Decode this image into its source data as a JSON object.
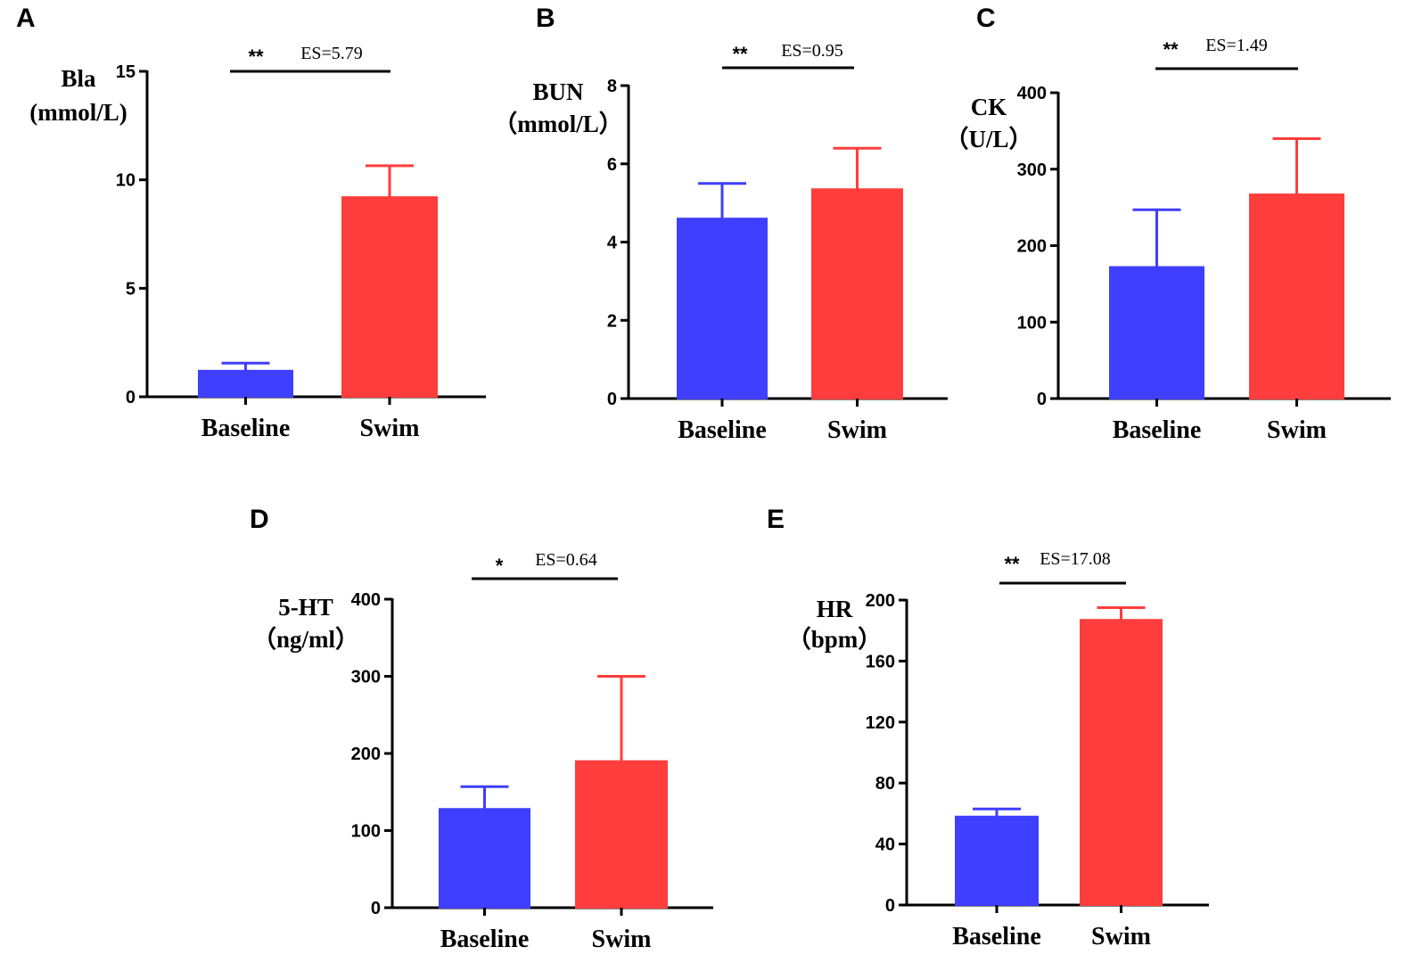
{
  "colors": {
    "baseline": "#3F3FFF",
    "swim": "#FF3D3D",
    "axis": "#000000"
  },
  "chart_data": [
    {
      "type": "bar",
      "panel": "A",
      "ylabel_lines": [
        "Bla",
        "(mmol/L)"
      ],
      "categories": [
        "Baseline",
        "Swim"
      ],
      "values": [
        1.2,
        9.2
      ],
      "errors": [
        0.35,
        1.45
      ],
      "ylim": [
        0,
        15
      ],
      "yticks": [
        0,
        5,
        10,
        15
      ],
      "significance": "**",
      "effect_size": "ES=5.79"
    },
    {
      "type": "bar",
      "panel": "B",
      "ylabel_lines": [
        "BUN",
        "（mmol/L）"
      ],
      "categories": [
        "Baseline",
        "Swim"
      ],
      "values": [
        4.6,
        5.35
      ],
      "errors": [
        0.9,
        1.05
      ],
      "ylim": [
        0,
        8
      ],
      "yticks": [
        0,
        2,
        4,
        6,
        8
      ],
      "significance": "**",
      "effect_size": "ES=0.95"
    },
    {
      "type": "bar",
      "panel": "C",
      "ylabel_lines": [
        "CK",
        "（U/L）"
      ],
      "categories": [
        "Baseline",
        "Swim"
      ],
      "values": [
        172,
        267
      ],
      "errors": [
        75,
        73
      ],
      "ylim": [
        0,
        400
      ],
      "yticks": [
        0,
        100,
        200,
        300,
        400
      ],
      "significance": "**",
      "effect_size": "ES=1.49"
    },
    {
      "type": "bar",
      "panel": "D",
      "ylabel_lines": [
        "5-HT",
        "（ng/ml）"
      ],
      "categories": [
        "Baseline",
        "Swim"
      ],
      "values": [
        128,
        190
      ],
      "errors": [
        29,
        110
      ],
      "ylim": [
        0,
        400
      ],
      "yticks": [
        0,
        100,
        200,
        300,
        400
      ],
      "significance": "*",
      "effect_size": "ES=0.64"
    },
    {
      "type": "bar",
      "panel": "E",
      "ylabel_lines": [
        "HR",
        "（bpm）"
      ],
      "categories": [
        "Baseline",
        "Swim"
      ],
      "values": [
        58,
        187
      ],
      "errors": [
        5,
        8
      ],
      "ylim": [
        0,
        200
      ],
      "yticks": [
        0,
        40,
        80,
        120,
        160,
        200
      ],
      "significance": "**",
      "effect_size": "ES=17.08"
    }
  ]
}
